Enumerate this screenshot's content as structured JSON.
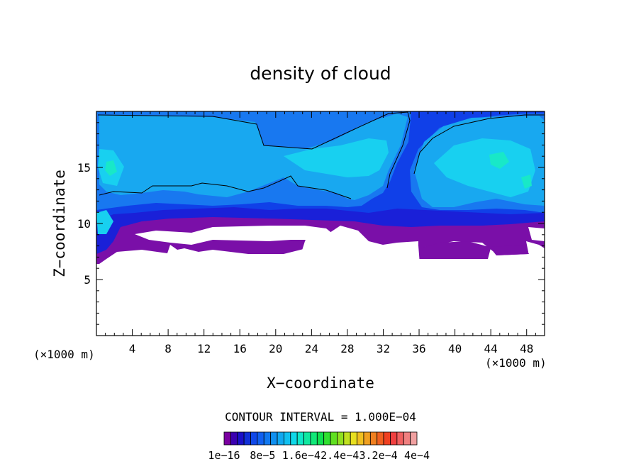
{
  "chart_data": {
    "type": "heatmap",
    "title": "density of cloud",
    "xlabel": "X−coordinate",
    "ylabel": "Z−coordinate",
    "x_unit_left": "(×1000 m)",
    "x_unit_right": "(×1000 m)",
    "xlim": [
      0,
      50
    ],
    "ylim": [
      0,
      20
    ],
    "x_ticks": [
      4,
      8,
      12,
      16,
      20,
      24,
      28,
      32,
      36,
      40,
      44,
      48
    ],
    "y_ticks": [
      5,
      10,
      15
    ],
    "contour_interval_text": "CONTOUR INTERVAL = 1.000E−04",
    "colorbar_labels": [
      "1e−16",
      "8e−5",
      "1.6e−4",
      "2.4e−4",
      "3.2e−4",
      "4e−4"
    ],
    "colorbar_colors": [
      "#7a00a0",
      "#3b00b0",
      "#1a10c8",
      "#1030d8",
      "#1048e8",
      "#1060f0",
      "#1078f0",
      "#1090f0",
      "#10a8f0",
      "#10c0f0",
      "#10d8e8",
      "#10e8c8",
      "#10e8a0",
      "#10e878",
      "#10e050",
      "#30e030",
      "#60e020",
      "#90e020",
      "#c0e020",
      "#e8e020",
      "#f0c020",
      "#f0a020",
      "#f08020",
      "#f06020",
      "#f04020",
      "#f04040",
      "#f06060",
      "#f08080",
      "#f0a0a0"
    ],
    "colors": {
      "purple": "#7a0fa8",
      "dark_blue": "#1a20d8",
      "blue": "#1040e8",
      "mid_blue": "#1878f0",
      "light_blue": "#18a8f0",
      "cyan": "#18d0f0",
      "aqua": "#18e8c8"
    },
    "grid": false
  }
}
